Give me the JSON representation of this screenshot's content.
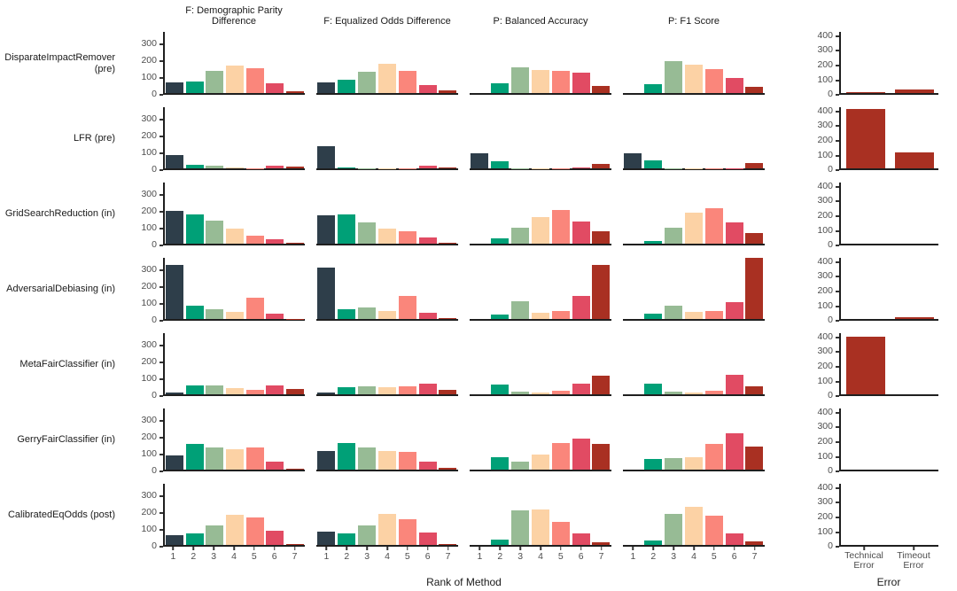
{
  "chart_data": {
    "type": "bar",
    "facet": "grid",
    "xlabel": "Rank of Method",
    "error_xlabel": "Error",
    "col_titles": [
      "F: Demographic Parity Difference",
      "F: Equalized Odds Difference",
      "P: Balanced Accuracy",
      "P: F1 Score"
    ],
    "x_categories": [
      "1",
      "2",
      "3",
      "4",
      "5",
      "6",
      "7"
    ],
    "error_categories": [
      "Technical\nError",
      "Timeout\nError"
    ],
    "main_yticks": [
      0,
      100,
      200,
      300
    ],
    "error_yticks": [
      0,
      100,
      200,
      300,
      400
    ],
    "main_ylim": [
      0,
      372
    ],
    "error_ylim": [
      0,
      430
    ],
    "grid": false,
    "legend": "none",
    "rank_colors": [
      "#2e3e4a",
      "#00a077",
      "#97bb95",
      "#fcd2a5",
      "#fa867b",
      "#e14b63",
      "#a93022"
    ],
    "error_color": "#a93022",
    "axis_color": "#1f1f1f",
    "tick_text_color": "#4d4d4d",
    "rows": [
      {
        "label": "DisparateImpactRemover (pre)",
        "panels": [
          [
            65,
            70,
            130,
            165,
            145,
            58,
            12
          ],
          [
            65,
            80,
            128,
            175,
            133,
            45,
            18
          ],
          [
            0,
            60,
            150,
            138,
            130,
            122,
            42
          ],
          [
            0,
            55,
            190,
            170,
            140,
            88,
            38
          ]
        ],
        "error": [
          7,
          27
        ]
      },
      {
        "label": "LFR (pre)",
        "panels": [
          [
            80,
            20,
            14,
            5,
            1,
            14,
            12
          ],
          [
            130,
            3,
            2,
            2,
            2,
            15,
            3
          ],
          [
            90,
            42,
            2,
            2,
            2,
            3,
            28
          ],
          [
            88,
            45,
            2,
            2,
            2,
            2,
            30
          ]
        ],
        "error": [
          405,
          112
        ]
      },
      {
        "label": "GridSearchReduction (in)",
        "panels": [
          [
            195,
            175,
            135,
            90,
            50,
            28,
            3
          ],
          [
            170,
            172,
            128,
            88,
            72,
            35,
            5
          ],
          [
            0,
            30,
            95,
            160,
            200,
            130,
            75
          ],
          [
            0,
            15,
            95,
            185,
            210,
            128,
            65
          ]
        ],
        "error": [
          0,
          0
        ]
      },
      {
        "label": "AdversarialDebiasing (in)",
        "panels": [
          [
            320,
            78,
            58,
            40,
            128,
            33,
            2
          ],
          [
            305,
            58,
            70,
            50,
            138,
            35,
            3
          ],
          [
            0,
            25,
            105,
            35,
            45,
            135,
            320
          ],
          [
            0,
            30,
            80,
            42,
            50,
            98,
            360
          ]
        ],
        "error": [
          0,
          15
        ]
      },
      {
        "label": "MetaFairClassifier (in)",
        "panels": [
          [
            12,
            52,
            55,
            38,
            28,
            55,
            32
          ],
          [
            12,
            42,
            45,
            40,
            48,
            62,
            25
          ],
          [
            0,
            58,
            18,
            10,
            22,
            62,
            108
          ],
          [
            0,
            65,
            18,
            12,
            20,
            115,
            48
          ]
        ],
        "error": [
          395,
          0
        ]
      },
      {
        "label": "GerryFairClassifier (in)",
        "panels": [
          [
            85,
            150,
            133,
            122,
            130,
            50,
            8
          ],
          [
            112,
            158,
            133,
            110,
            107,
            45,
            10
          ],
          [
            0,
            72,
            48,
            88,
            160,
            183,
            152
          ],
          [
            0,
            65,
            68,
            75,
            150,
            215,
            135
          ]
        ],
        "error": [
          0,
          0
        ]
      },
      {
        "label": "CalibratedEqOdds (post)",
        "panels": [
          [
            58,
            70,
            115,
            178,
            162,
            85,
            8
          ],
          [
            78,
            70,
            118,
            185,
            150,
            72,
            5
          ],
          [
            0,
            32,
            205,
            210,
            135,
            68,
            18
          ],
          [
            0,
            25,
            182,
            228,
            172,
            70,
            20
          ]
        ],
        "error": [
          0,
          0
        ]
      }
    ]
  }
}
